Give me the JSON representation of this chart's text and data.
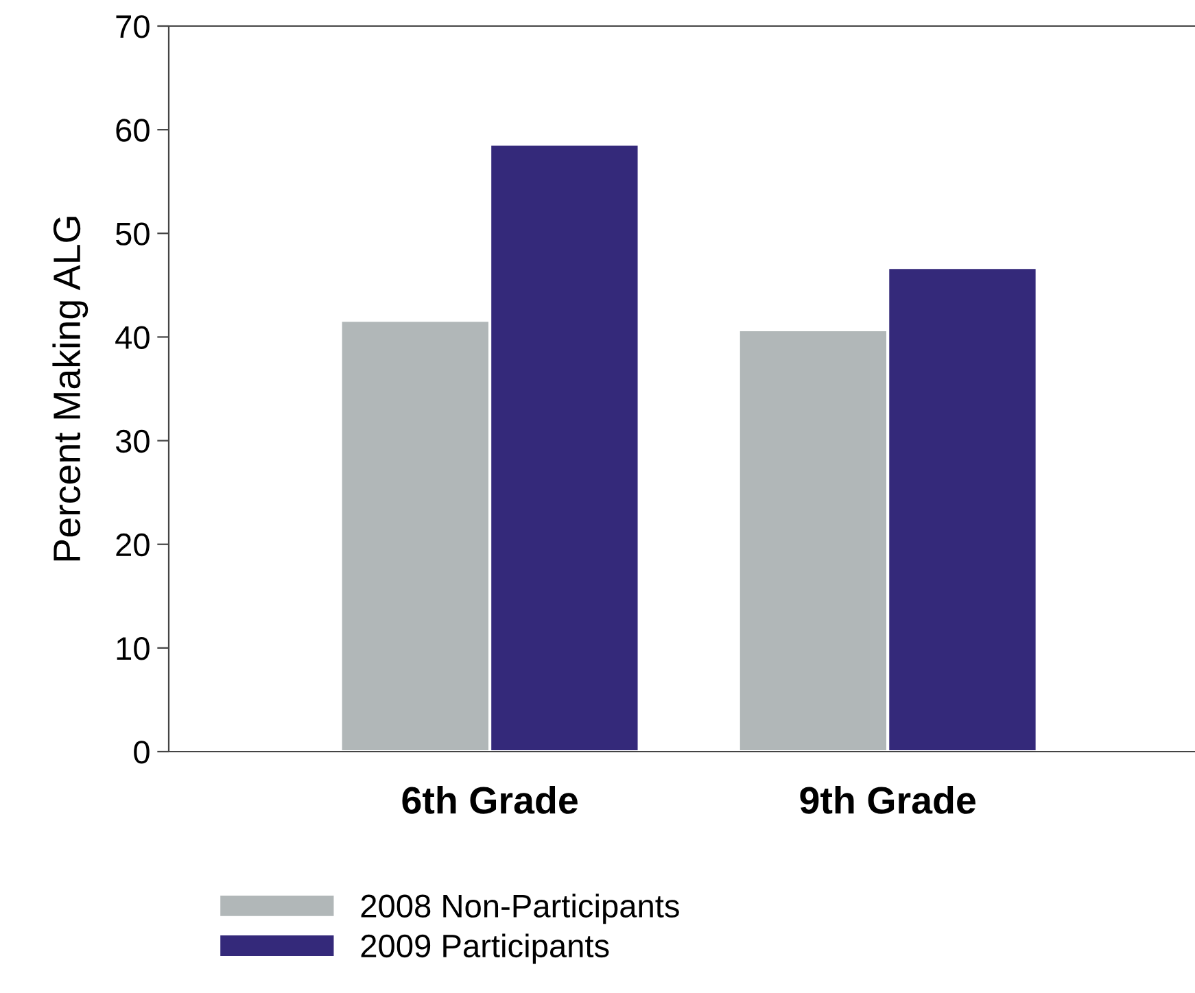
{
  "chart_data": {
    "type": "bar",
    "ylabel": "Percent Making ALG",
    "categories": [
      "6th Grade",
      "9th Grade"
    ],
    "series": [
      {
        "name": "2008 Non-Participants",
        "color": "#b1b7b8",
        "values": [
          41.6,
          40.7
        ]
      },
      {
        "name": "2009 Participants",
        "color": "#34297a",
        "values": [
          58.6,
          46.7
        ]
      }
    ],
    "ylim": [
      0,
      70
    ],
    "yticks": [
      0,
      10,
      20,
      30,
      40,
      50,
      60,
      70
    ],
    "grid": false,
    "legend": "bottom left"
  }
}
